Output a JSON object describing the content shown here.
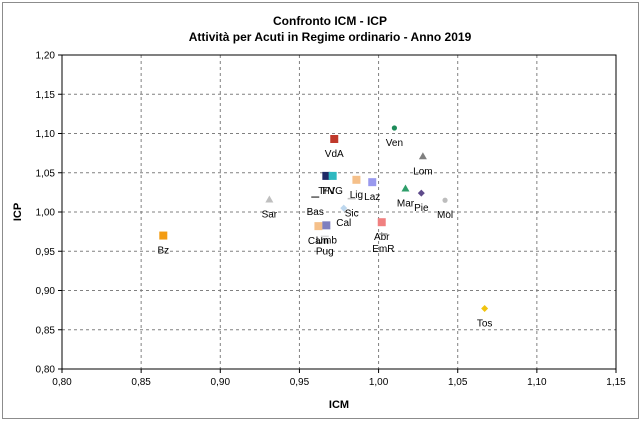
{
  "chart_data": {
    "type": "scatter",
    "title": "Confronto ICM - ICP",
    "subtitle": "Attività per Acuti in Regime ordinario - Anno 2019",
    "xlabel": "ICM",
    "ylabel": "ICP",
    "xlim": [
      0.8,
      1.15
    ],
    "ylim": [
      0.8,
      1.2
    ],
    "x_ticks": [
      "0,80",
      "0,85",
      "0,90",
      "0,95",
      "1,00",
      "1,05",
      "1,10",
      "1,15"
    ],
    "y_ticks": [
      "0,80",
      "0,85",
      "0,90",
      "0,95",
      "1,00",
      "1,05",
      "1,10",
      "1,15",
      "1,20"
    ],
    "grid": true,
    "points": [
      {
        "label": "VdA",
        "x": 0.972,
        "y": 1.093,
        "color": "#c0392b",
        "marker": "square"
      },
      {
        "label": "Ven",
        "x": 1.01,
        "y": 1.107,
        "color": "#1e8c5a",
        "marker": "circle"
      },
      {
        "label": "Lom",
        "x": 1.028,
        "y": 1.071,
        "color": "#7f7f7f",
        "marker": "triangle"
      },
      {
        "label": "TrN",
        "x": 0.967,
        "y": 1.046,
        "color": "#1f2a66",
        "marker": "square"
      },
      {
        "label": "FVG",
        "x": 0.971,
        "y": 1.046,
        "color": "#2eb8c0",
        "marker": "square"
      },
      {
        "label": "Lig",
        "x": 0.986,
        "y": 1.041,
        "color": "#f5c08a",
        "marker": "square"
      },
      {
        "label": "Laz",
        "x": 0.996,
        "y": 1.038,
        "color": "#9999ee",
        "marker": "square"
      },
      {
        "label": "Sic",
        "x": 0.983,
        "y": 1.017,
        "color": "#bfbfbf",
        "marker": "dash"
      },
      {
        "label": "Mar",
        "x": 1.017,
        "y": 1.03,
        "color": "#2e9e6a",
        "marker": "triangle"
      },
      {
        "label": "Pie",
        "x": 1.027,
        "y": 1.024,
        "color": "#5e4b8b",
        "marker": "diamond"
      },
      {
        "label": "Mol",
        "x": 1.042,
        "y": 1.015,
        "color": "#bdbdbd",
        "marker": "circle"
      },
      {
        "label": "Sar",
        "x": 0.931,
        "y": 1.016,
        "color": "#bfbfbf",
        "marker": "triangle"
      },
      {
        "label": "Bas",
        "x": 0.96,
        "y": 1.019,
        "color": "#595959",
        "marker": "dash"
      },
      {
        "label": "Cal",
        "x": 0.978,
        "y": 1.005,
        "color": "#bdd7ee",
        "marker": "diamond"
      },
      {
        "label": "Abr",
        "x": 1.002,
        "y": 0.987,
        "color": "#f08080",
        "marker": "square"
      },
      {
        "label": "EmR",
        "x": 1.003,
        "y": 0.972,
        "color": "#999999",
        "marker": "dash"
      },
      {
        "label": "Cam",
        "x": 0.962,
        "y": 0.982,
        "color": "#f5c08a",
        "marker": "square"
      },
      {
        "label": "Umb",
        "x": 0.967,
        "y": 0.983,
        "color": "#7f7fbf",
        "marker": "square"
      },
      {
        "label": "Pug",
        "x": 0.966,
        "y": 0.969,
        "color": "#d9d9d9",
        "marker": "dash"
      },
      {
        "label": "Bz",
        "x": 0.864,
        "y": 0.97,
        "color": "#f39c12",
        "marker": "square"
      },
      {
        "label": "Tos",
        "x": 1.067,
        "y": 0.877,
        "color": "#f1c40f",
        "marker": "diamond"
      }
    ]
  }
}
